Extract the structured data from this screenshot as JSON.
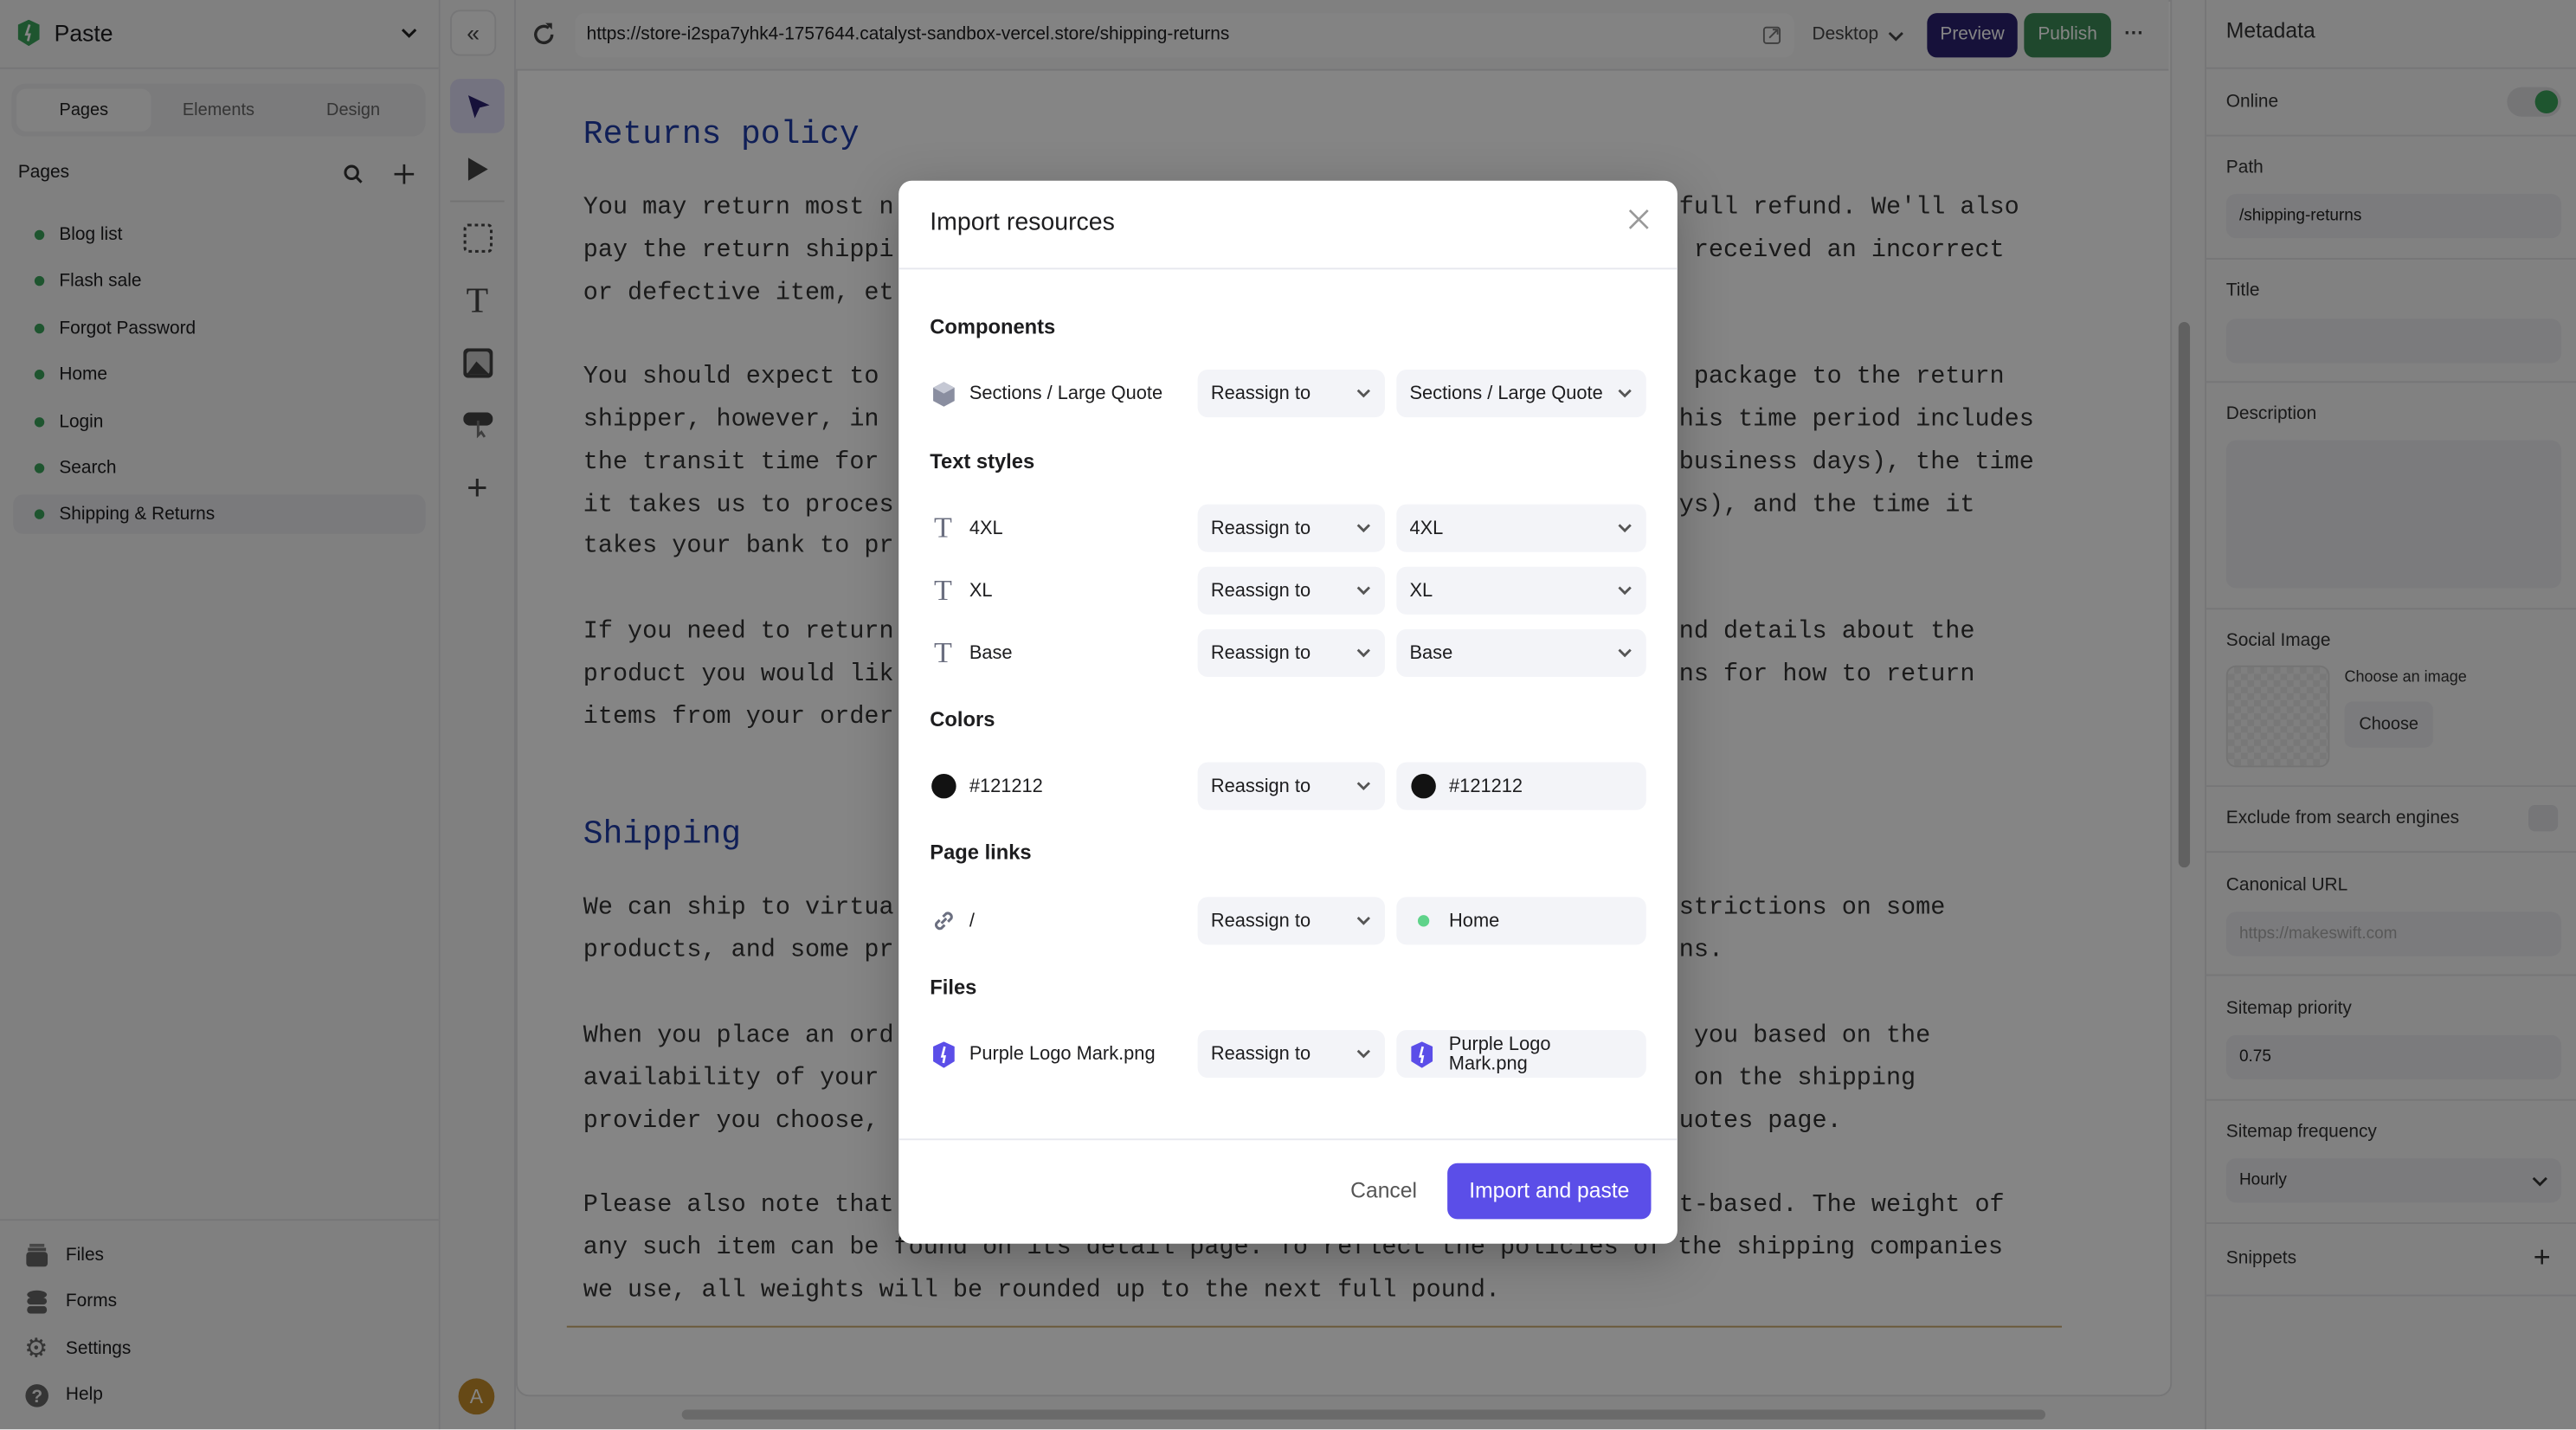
{
  "project": {
    "name": "Paste"
  },
  "sidebar": {
    "tabs": [
      "Pages",
      "Elements",
      "Design"
    ],
    "active_tab": "Pages",
    "pages_heading": "Pages",
    "pages": [
      "Blog list",
      "Flash sale",
      "Forgot Password",
      "Home",
      "Login",
      "Search",
      "Shipping & Returns"
    ],
    "active_page": "Shipping & Returns",
    "bottom": [
      {
        "label": "Files",
        "icon": "files-icon"
      },
      {
        "label": "Forms",
        "icon": "database-icon"
      },
      {
        "label": "Settings",
        "icon": "gear-icon"
      },
      {
        "label": "Help",
        "icon": "help-icon"
      }
    ],
    "avatar": "A"
  },
  "toolbar": {
    "url": "https://store-i2spa7yhk4-1757644.catalyst-sandbox-vercel.store/shipping-returns",
    "device": "Desktop",
    "preview": "Preview",
    "publish": "Publish",
    "more": "···"
  },
  "colors": {
    "preview": "#2b2170",
    "publish": "#3d8b57",
    "accent": "#5b4ee8",
    "online": "#3aa35a"
  },
  "canvas": {
    "heading1": "Returns policy",
    "lines1": [
      [
        "You may return most n",
        "full refund. We'll also"
      ],
      [
        "pay the return shippi",
        " received an incorrect"
      ],
      [
        "or defective item, et",
        ""
      ],
      [
        "You should expect to",
        " package to the return"
      ],
      [
        "shipper, however, in",
        "his time period includes"
      ],
      [
        "the transit time for",
        "business days), the time"
      ],
      [
        "it takes us to proces",
        "ys), and the time it"
      ],
      [
        "takes your bank to pr",
        ""
      ],
      [
        "If you need to return",
        "nd details about the"
      ],
      [
        "product you would lik",
        "ns for how to return"
      ],
      [
        "items from your order",
        ""
      ]
    ],
    "heading2": "Shipping",
    "lines2": [
      [
        "We can ship to virtua",
        "strictions on some"
      ],
      [
        "products, and some pr",
        "ns."
      ],
      [
        "When you place an ord",
        " you based on the"
      ],
      [
        "availability of your",
        " on the shipping"
      ],
      [
        "provider you choose,",
        "uotes page."
      ],
      [
        "Please also note that",
        "t-based. The weight of"
      ]
    ],
    "line_full_1": "any such item can be found on its detail page. To reflect the policies of the shipping companies",
    "line_full_2": "we use, all weights will be rounded up to the next full pound."
  },
  "metadata": {
    "title": "Metadata",
    "online_label": "Online",
    "online": true,
    "path_label": "Path",
    "path": "/shipping-returns",
    "title_label": "Title",
    "title_value": "",
    "description_label": "Description",
    "social_label": "Social Image",
    "choose_image": "Choose an image",
    "choose": "Choose",
    "exclude_label": "Exclude from search engines",
    "exclude": false,
    "canonical_label": "Canonical URL",
    "canonical_placeholder": "https://makeswift.com",
    "priority_label": "Sitemap priority",
    "priority": "0.75",
    "frequency_label": "Sitemap frequency",
    "frequency": "Hourly",
    "snippets_label": "Snippets"
  },
  "modal": {
    "title": "Import resources",
    "cancel": "Cancel",
    "confirm": "Import and paste",
    "reassign": "Reassign to",
    "sections": {
      "components": {
        "title": "Components",
        "items": [
          {
            "name": "Sections / Large Quote",
            "target": "Sections / Large Quote"
          }
        ]
      },
      "text_styles": {
        "title": "Text styles",
        "items": [
          {
            "name": "4XL",
            "target": "4XL"
          },
          {
            "name": "XL",
            "target": "XL"
          },
          {
            "name": "Base",
            "target": "Base"
          }
        ]
      },
      "colors": {
        "title": "Colors",
        "items": [
          {
            "name": "#121212",
            "target": "#121212",
            "swatch": "#121212"
          }
        ]
      },
      "page_links": {
        "title": "Page links",
        "items": [
          {
            "name": "/",
            "target": "Home"
          }
        ]
      },
      "files": {
        "title": "Files",
        "items": [
          {
            "name": "Purple Logo Mark.png",
            "target": "Purple Logo Mark.png"
          }
        ]
      }
    }
  }
}
